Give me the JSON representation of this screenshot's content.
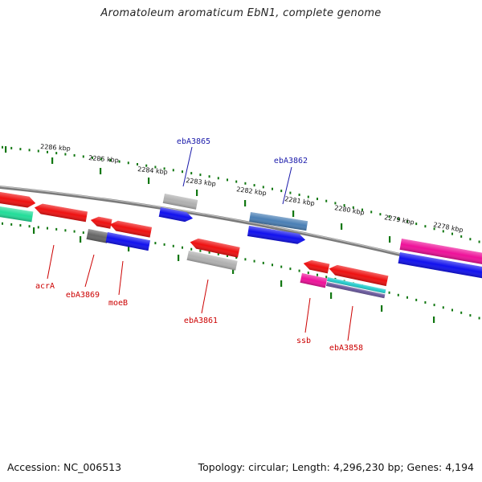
{
  "title": "Aromatoleum aromaticum EbN1, complete genome",
  "footer": {
    "accession": "Accession: NC_006513",
    "topology": "Topology: circular; Length: 4,296,230 bp; Genes: 4,194"
  },
  "ruler": {
    "kbp_labels": [
      "2286 kbp",
      "2285 kbp",
      "2284 kbp",
      "2283 kbp",
      "2282 kbp",
      "2281 kbp",
      "2280 kbp",
      "2279 kbp",
      "2278 kbp"
    ]
  },
  "gene_labels": {
    "top": [
      "ebA3865",
      "ebA3862"
    ],
    "bottom": [
      "acrA",
      "ebA3869",
      "moeB",
      "ebA3861",
      "ssb",
      "ebA3858"
    ]
  },
  "colors": {
    "top_label": "#1a1aaa",
    "bottom_label": "#cc0000",
    "tick": "#117711",
    "backbone": "#7a7a7a",
    "red": "#ee1111",
    "blue": "#1111ee",
    "gray": "#b0b0b0",
    "dark_gray": "#666666",
    "steel_blue": "#4a7fb5",
    "magenta": "#ee1199",
    "green": "#22dd99",
    "cyan": "#22cccc",
    "purple": "#665599"
  }
}
